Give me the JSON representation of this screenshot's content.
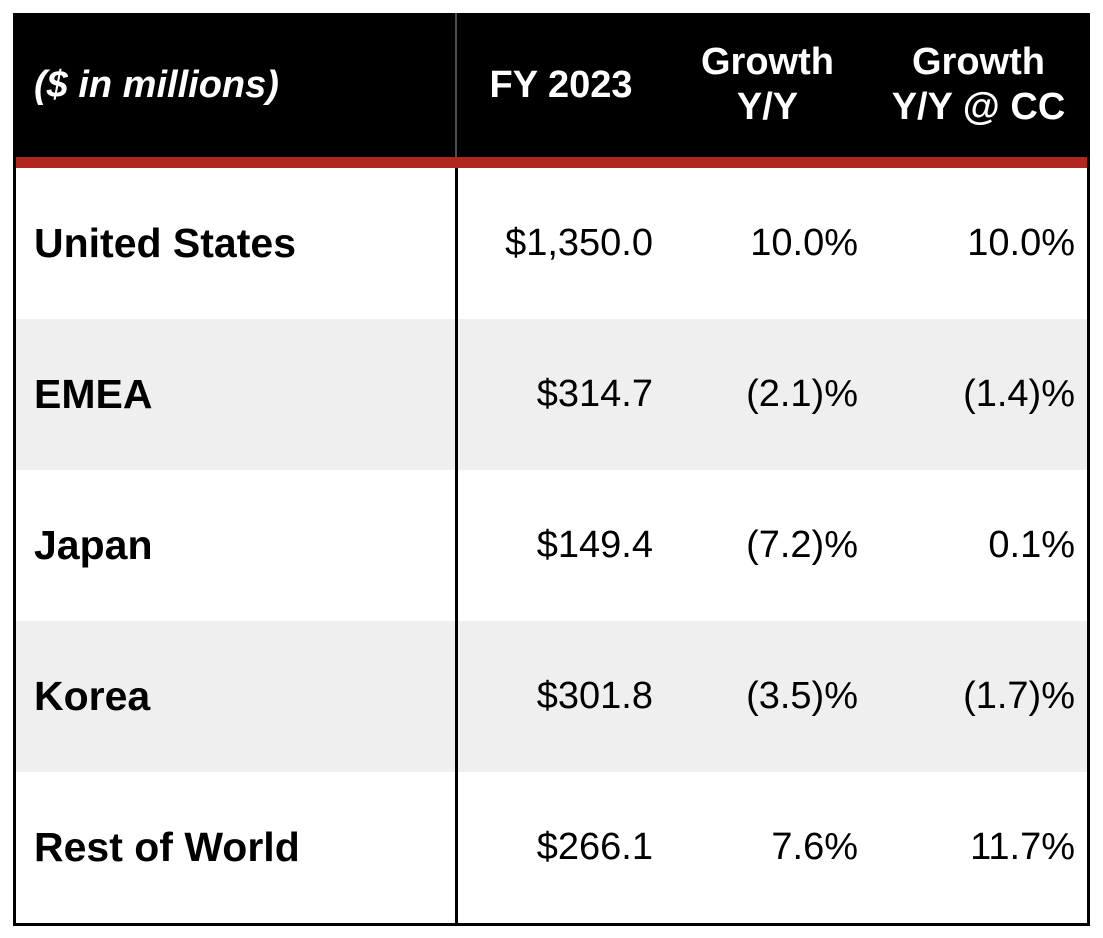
{
  "colors": {
    "header_bg": "#000000",
    "accent_red": "#b2271d",
    "row_alt": "#efefef",
    "header_divider": "#4f4f4f",
    "body_divider": "#000000"
  },
  "table": {
    "unit_note": "($ in millions)",
    "columns": [
      {
        "line1": "FY 2023",
        "line2": ""
      },
      {
        "line1": "Growth",
        "line2": "Y/Y"
      },
      {
        "line1": "Growth",
        "line2": "Y/Y @ CC"
      }
    ],
    "rows": [
      {
        "label": "United States",
        "fy2023": "$1,350.0",
        "growth_yy": "10.0%",
        "growth_yy_cc": "10.0%"
      },
      {
        "label": "EMEA",
        "fy2023": "$314.7",
        "growth_yy": "(2.1)%",
        "growth_yy_cc": "(1.4)%"
      },
      {
        "label": "Japan",
        "fy2023": "$149.4",
        "growth_yy": "(7.2)%",
        "growth_yy_cc": "0.1%"
      },
      {
        "label": "Korea",
        "fy2023": "$301.8",
        "growth_yy": "(3.5)%",
        "growth_yy_cc": "(1.7)%"
      },
      {
        "label": "Rest of World",
        "fy2023": "$266.1",
        "growth_yy": "7.6%",
        "growth_yy_cc": "11.7%"
      }
    ]
  },
  "chart_data": {
    "type": "table",
    "title": "($ in millions)",
    "columns": [
      "",
      "FY 2023",
      "Growth Y/Y",
      "Growth Y/Y @ CC"
    ],
    "rows": [
      [
        "United States",
        "$1,350.0",
        "10.0%",
        "10.0%"
      ],
      [
        "EMEA",
        "$314.7",
        "(2.1)%",
        "(1.4)%"
      ],
      [
        "Japan",
        "$149.4",
        "(7.2)%",
        "0.1%"
      ],
      [
        "Korea",
        "$301.8",
        "(3.5)%",
        "(1.7)%"
      ],
      [
        "Rest of World",
        "$266.1",
        "7.6%",
        "11.7%"
      ]
    ]
  }
}
